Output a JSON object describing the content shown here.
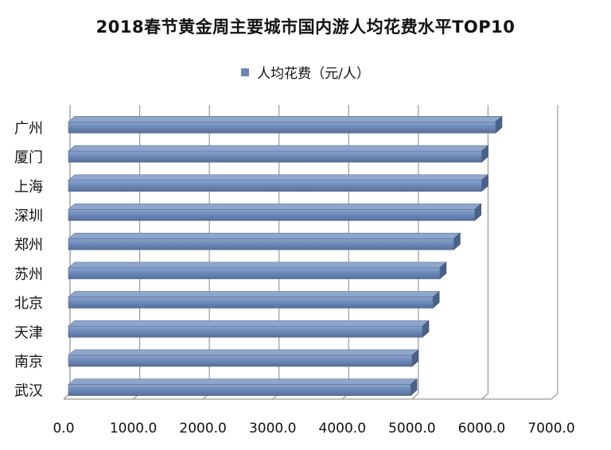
{
  "chart_data": {
    "type": "bar",
    "orientation": "horizontal",
    "title": "2018春节黄金周主要城市国内游人均花费水平TOP10",
    "legend": {
      "placement": "top",
      "entries": [
        "人均花费（元/人）"
      ]
    },
    "categories": [
      "广州",
      "厦门",
      "上海",
      "深圳",
      "郑州",
      "苏州",
      "北京",
      "天津",
      "南京",
      "武汉"
    ],
    "series": [
      {
        "name": "人均花费（元/人）",
        "values": [
          6200,
          6000,
          6000,
          5900,
          5600,
          5400,
          5300,
          5150,
          5000,
          4980
        ]
      }
    ],
    "xlim": [
      0,
      7000
    ],
    "xticks": [
      "0.0",
      "1000.0",
      "2000.0",
      "3000.0",
      "4000.0",
      "5000.0",
      "6000.0",
      "7000.0"
    ],
    "grid": true,
    "bar_color": "#6b87b5"
  }
}
